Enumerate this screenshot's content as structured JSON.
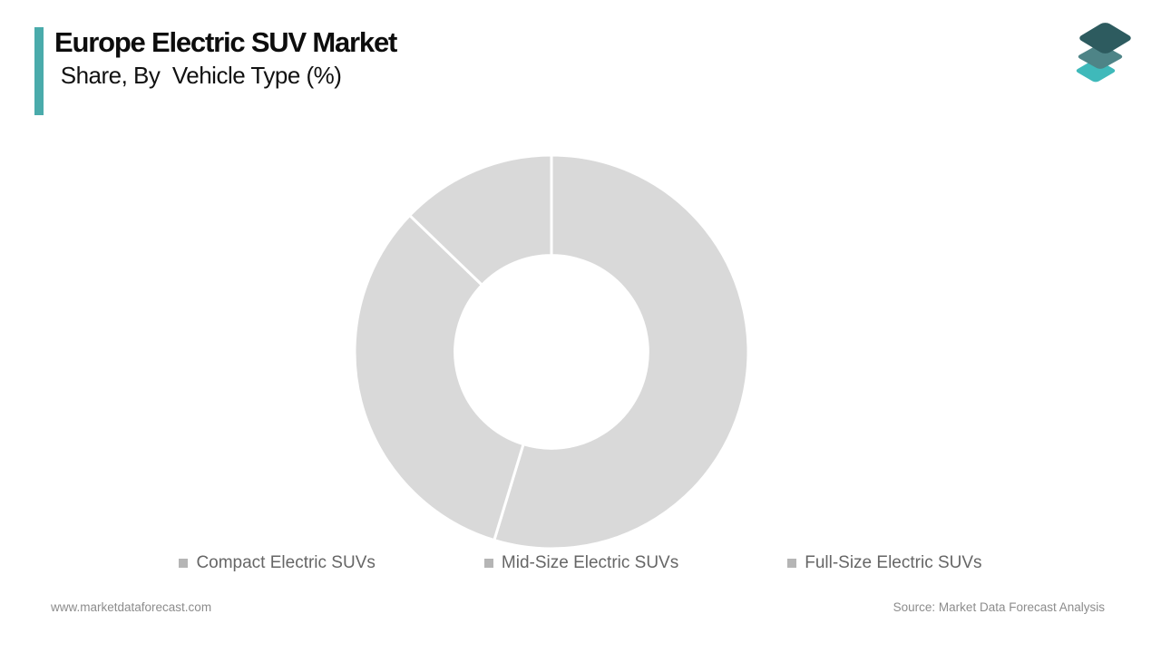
{
  "header": {
    "accent_color": "#4aabab",
    "title_line1": "Europe Electric SUV Market",
    "title_line2": " Share, By  Vehicle Type (%)"
  },
  "logo": {
    "layers": [
      {
        "name": "bottom-layer",
        "color": "#3fb9ba"
      },
      {
        "name": "middle-layer",
        "color": "#4e8487"
      },
      {
        "name": "top-layer",
        "color": "#2d5b5f"
      }
    ]
  },
  "chart_data": {
    "type": "pie",
    "subtype": "donut",
    "title": "Europe Electric SUV Market Share, By Vehicle Type (%)",
    "categories": [
      "Compact Electric SUVs",
      "Mid-Size Electric SUVs",
      "Full-Size Electric SUVs"
    ],
    "values": [
      54.7,
      32.5,
      12.8
    ],
    "unit": "%",
    "start_angle_deg": 0,
    "direction": "clockwise",
    "slice_color": "#d9d9d9",
    "slice_border_color": "#ffffff",
    "slice_border_width": 3,
    "inner_radius_ratio": 0.49,
    "data_labels": false,
    "legend_position": "bottom"
  },
  "legend": {
    "marker_color": "#b5b5b5",
    "items": [
      {
        "label": "Compact Electric SUVs"
      },
      {
        "label": "Mid-Size Electric SUVs"
      },
      {
        "label": "Full-Size Electric SUVs"
      }
    ]
  },
  "footer": {
    "website": "www.marketdataforecast.com",
    "source": "Source: Market Data Forecast Analysis"
  }
}
